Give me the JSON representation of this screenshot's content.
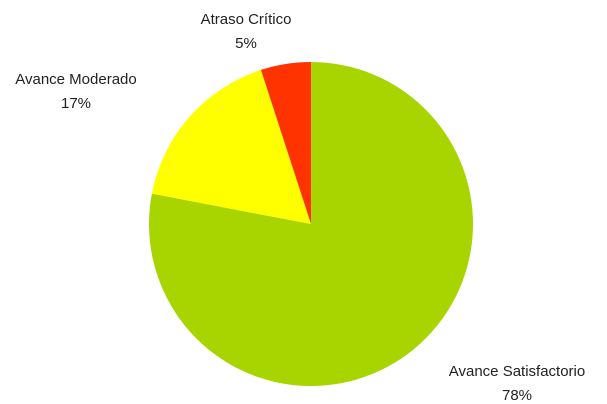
{
  "chart_data": {
    "type": "pie",
    "categories": [
      "Avance Satisfactorio",
      "Avance Moderado",
      "Atraso Crítico"
    ],
    "values": [
      78,
      17,
      5
    ],
    "value_labels": [
      "78%",
      "17%",
      "5%"
    ],
    "colors": [
      "#a8d400",
      "#ffff00",
      "#ff3300"
    ]
  }
}
